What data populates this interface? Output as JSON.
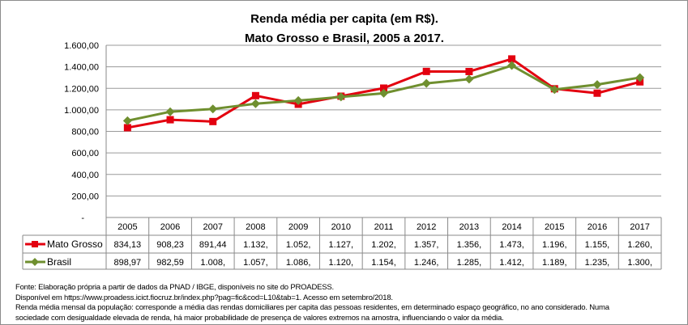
{
  "chart_data": {
    "type": "line",
    "title": [
      "Renda média per capita (em R$).",
      "Mato Grosso e Brasil, 2005 a 2017."
    ],
    "categories": [
      "2005",
      "2006",
      "2007",
      "2008",
      "2009",
      "2010",
      "2011",
      "2012",
      "2013",
      "2014",
      "2015",
      "2016",
      "2017"
    ],
    "ylim": [
      0,
      1600
    ],
    "yticks": [
      "-",
      "200,00",
      "400,00",
      "600,00",
      "800,00",
      "1.000,00",
      "1.200,00",
      "1.400,00",
      "1.600,00"
    ],
    "grid": true,
    "legend": "data-table",
    "series": [
      {
        "name": "Mato Grosso",
        "color": "#e3000f",
        "marker": "square",
        "values": [
          834.13,
          908.23,
          891.44,
          1132,
          1052,
          1127,
          1202,
          1357,
          1356,
          1473,
          1196,
          1155,
          1260
        ],
        "labels": [
          "834,13",
          "908,23",
          "891,44",
          "1.132,",
          "1.052,",
          "1.127,",
          "1.202,",
          "1.357,",
          "1.356,",
          "1.473,",
          "1.196,",
          "1.155,",
          "1.260,"
        ]
      },
      {
        "name": "Brasil",
        "color": "#6f8f2f",
        "marker": "diamond",
        "values": [
          898.97,
          982.59,
          1008,
          1057,
          1086,
          1120,
          1154,
          1246,
          1285,
          1412,
          1189,
          1235,
          1300
        ],
        "labels": [
          "898,97",
          "982,59",
          "1.008,",
          "1.057,",
          "1.086,",
          "1.120,",
          "1.154,",
          "1.246,",
          "1.285,",
          "1.412,",
          "1.189,",
          "1.235,",
          "1.300,"
        ]
      }
    ]
  },
  "notes": [
    "Fonte: Elaboração própria a partir de dados da PNAD / IBGE, disponíveis no site do PROADESS.",
    "Disponível em https://www.proadess.icict.fiocruz.br/index.php?pag=fic&cod=L10&tab=1. Acesso em setembro/2018.",
    "Renda média mensal da população: corresponde a média das rendas domiciliares per capita das pessoas residentes, em determinado espaço geográfico, no ano considerado. Numa",
    "sociedade com desigualdade elevada de renda, há maior probabilidade de presença de valores extremos na amostra, influenciando o valor da média."
  ]
}
